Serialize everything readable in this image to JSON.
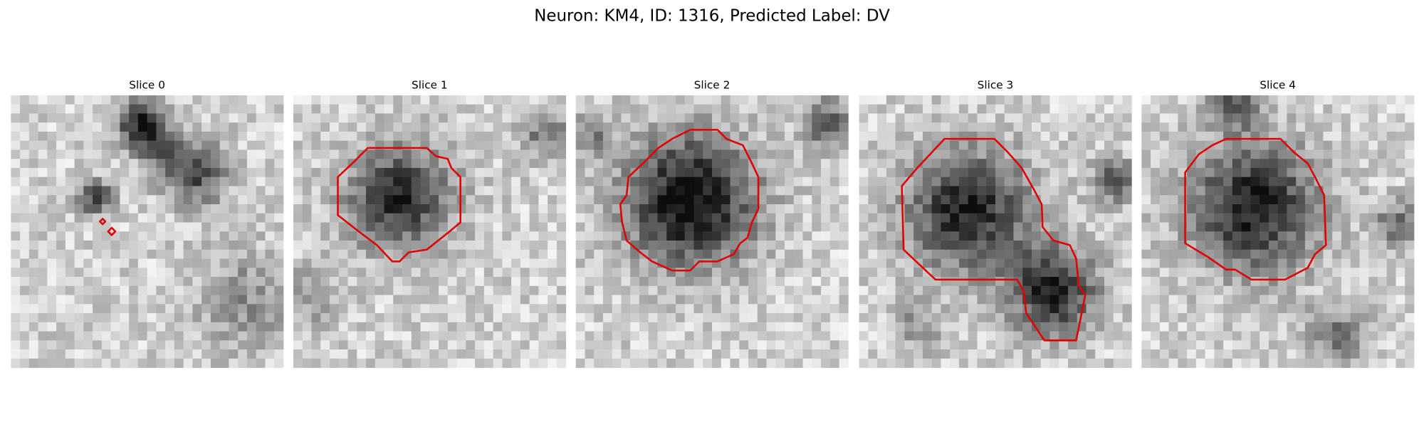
{
  "title": "Neuron: KM4, ID: 1316, Predicted Label: DV",
  "panels": [
    {
      "title": "Slice 0"
    },
    {
      "title": "Slice 1"
    },
    {
      "title": "Slice 2"
    },
    {
      "title": "Slice 3"
    },
    {
      "title": "Slice 4"
    }
  ]
}
